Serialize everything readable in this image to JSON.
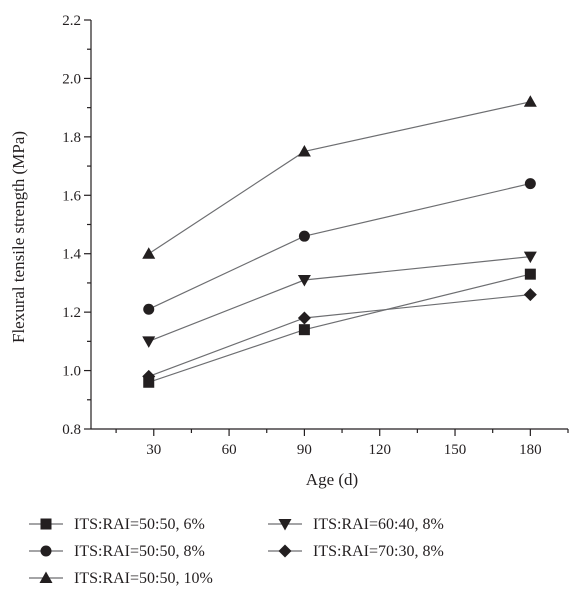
{
  "chart_data": {
    "type": "line",
    "xlabel": "Age (d)",
    "ylabel": "Flexural tensile strength (MPa)",
    "xlim": [
      5,
      195
    ],
    "ylim": [
      0.8,
      2.2
    ],
    "xticks": [
      30,
      60,
      90,
      120,
      150,
      180
    ],
    "yticks": [
      0.8,
      1.0,
      1.2,
      1.4,
      1.6,
      1.8,
      2.0,
      2.2
    ],
    "ytick_labels": [
      "0.8",
      "1.0",
      "1.2",
      "1.4",
      "1.6",
      "1.8",
      "2.0",
      "2.2"
    ],
    "x": [
      28,
      90,
      180
    ],
    "legend_placement": "bottom",
    "grid": false,
    "series": [
      {
        "name": "ITS:RAI=50:50, 6%",
        "marker": "square",
        "values": [
          0.96,
          1.14,
          1.33
        ]
      },
      {
        "name": "ITS:RAI=50:50, 8%",
        "marker": "circle",
        "values": [
          1.21,
          1.46,
          1.64
        ]
      },
      {
        "name": "ITS:RAI=50:50, 10%",
        "marker": "triangle-up",
        "values": [
          1.4,
          1.75,
          1.92
        ]
      },
      {
        "name": "ITS:RAI=60:40, 8%",
        "marker": "triangle-down",
        "values": [
          1.1,
          1.31,
          1.39
        ]
      },
      {
        "name": "ITS:RAI=70:30, 8%",
        "marker": "diamond",
        "values": [
          0.98,
          1.18,
          1.26
        ]
      }
    ],
    "colors": {
      "marker": "#231f20",
      "line": "#6d6e71",
      "axis": "#231f20"
    }
  }
}
